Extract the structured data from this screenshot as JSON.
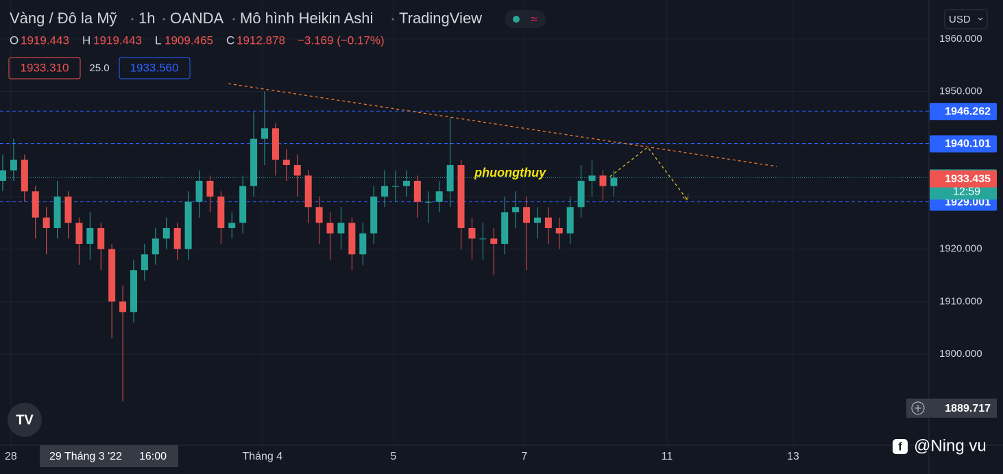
{
  "chart_data": {
    "type": "candlestick",
    "header_parts": [
      "Vàng / Đô la Mỹ",
      "1h",
      "OANDA",
      "Mô hình Heikin Ashi",
      "TradingView"
    ],
    "ohlc_legend": [
      {
        "letter": "O",
        "value": 1919.443
      },
      {
        "letter": "H",
        "value": 1919.443
      },
      {
        "letter": "L",
        "value": 1909.465
      },
      {
        "letter": "C",
        "value": 1912.878
      }
    ],
    "change_label": "−3.169 (−0.17%)",
    "sell_price": "1933.310",
    "spread": "25.0",
    "buy_price": "1933.560",
    "currency": "USD",
    "up_color": "#26a69a",
    "down_color": "#ef5350",
    "x": [
      1,
      5,
      9,
      13,
      17,
      21,
      25,
      29,
      33,
      37,
      41,
      45,
      49,
      53,
      57,
      61,
      65,
      69,
      73,
      77,
      81,
      85,
      89,
      93,
      97,
      101,
      105,
      109,
      113,
      117,
      121,
      125,
      129,
      133,
      137,
      141,
      145,
      149,
      153,
      157,
      161,
      165,
      169,
      173,
      177,
      181,
      185,
      189,
      193,
      197,
      201,
      205,
      209,
      213,
      217,
      221,
      225
    ],
    "open": [
      1933,
      1935,
      1937,
      1931,
      1926,
      1924,
      1930,
      1925,
      1921,
      1924,
      1920,
      1910,
      1908,
      1916,
      1919,
      1922,
      1924,
      1920,
      1929,
      1933,
      1930,
      1924,
      1925,
      1932,
      1941,
      1943,
      1937,
      1936,
      1934,
      1928,
      1925,
      1923,
      1925,
      1919,
      1923,
      1930,
      1932,
      1932,
      1933,
      1929,
      1929,
      1931,
      1936,
      1924,
      1922,
      1922,
      1921,
      1927,
      1928,
      1925,
      1926,
      1924,
      1923,
      1928,
      1933,
      1934,
      1932
    ],
    "high": [
      1938,
      1941,
      1938,
      1932,
      1928,
      1933,
      1931,
      1926,
      1927,
      1925,
      1921,
      1913,
      1918,
      1921,
      1924,
      1926,
      1925,
      1931,
      1935,
      1934,
      1931,
      1927,
      1934,
      1946,
      1950,
      1944,
      1939,
      1938,
      1935,
      1930,
      1927,
      1928,
      1926,
      1925,
      1932,
      1935,
      1935,
      1935,
      1934,
      1931,
      1933,
      1945,
      1937,
      1926,
      1925,
      1924,
      1930,
      1931,
      1930,
      1928,
      1928,
      1926,
      1930,
      1936,
      1937,
      1935,
      1935
    ],
    "low": [
      1931,
      1933,
      1929,
      1922,
      1919,
      1922,
      1922,
      1917,
      1918,
      1916,
      1903,
      1891,
      1906,
      1914,
      1917,
      1920,
      1918,
      1918,
      1926,
      1927,
      1921,
      1922,
      1923,
      1930,
      1936,
      1934,
      1933,
      1930,
      1925,
      1921,
      1918,
      1920,
      1916,
      1917,
      1921,
      1928,
      1929,
      1930,
      1926,
      1925,
      1927,
      1928,
      1920,
      1918,
      1918,
      1915,
      1919,
      1924,
      1916,
      1922,
      1921,
      1920,
      1921,
      1926,
      1930,
      1929,
      1930
    ],
    "close": [
      1935,
      1937,
      1931,
      1926,
      1924,
      1930,
      1925,
      1921,
      1924,
      1920,
      1910,
      1908,
      1916,
      1919,
      1922,
      1924,
      1920,
      1929,
      1933,
      1930,
      1924,
      1925,
      1932,
      1941,
      1943,
      1937,
      1936,
      1934,
      1928,
      1925,
      1923,
      1925,
      1919,
      1923,
      1930,
      1932,
      1932,
      1933,
      1929,
      1929,
      1931,
      1936,
      1924,
      1922,
      1922,
      1921,
      1927,
      1928,
      1925,
      1926,
      1924,
      1923,
      1928,
      1933,
      1934,
      1932,
      1933.606
    ],
    "xlim": [
      0,
      340.5
    ],
    "ylim": [
      1882.65,
      1967.43
    ],
    "xticks": [
      {
        "value": 4,
        "label": "28"
      },
      {
        "value": 96.2,
        "label": "Tháng 4"
      },
      {
        "value": 144.2,
        "label": "5"
      },
      {
        "value": 192.2,
        "label": "7"
      },
      {
        "value": 244.5,
        "label": "11"
      },
      {
        "value": 290.7,
        "label": "13"
      }
    ],
    "yticks": [
      {
        "value": 1900,
        "label": "1900.000"
      },
      {
        "value": 1910,
        "label": "1910.000"
      },
      {
        "value": 1920,
        "label": "1920.000"
      },
      {
        "value": 1930,
        "label": "1930.000"
      },
      {
        "value": 1940,
        "label": "1940.000"
      },
      {
        "value": 1950,
        "label": "1950.000"
      },
      {
        "value": 1960,
        "label": "1960.000"
      }
    ],
    "grid": true,
    "levels": [
      {
        "value": 1946.262,
        "color": "#2962ff",
        "style": "dashed"
      },
      {
        "value": 1940.101,
        "color": "#2962ff",
        "style": "dashed"
      },
      {
        "value": 1929.001,
        "color": "#2962ff",
        "style": "dashed"
      },
      {
        "value": 1933.606,
        "color": "#26a69a",
        "style": "dotted"
      }
    ],
    "last_price_countdown": "12:59",
    "prev_price_tag": {
      "value": 1933.435,
      "color": "#ef5350"
    },
    "crosshair": {
      "value": 1889.717,
      "date": "29 Tháng 3 '22",
      "time": "16:00"
    },
    "trendline": {
      "x": [
        83.7,
        284.7
      ],
      "y": [
        1951.5,
        1935.74
      ],
      "color": "#f57c2a"
    },
    "projection": {
      "x": [
        223.6,
        237.4,
        252
      ],
      "y": [
        1933.8,
        1939.4,
        1929.35
      ],
      "color": "#e6c229"
    },
    "annotation": {
      "text": "phuongthuy",
      "x": 187,
      "y": 1934.4
    },
    "watermark": "@Ning vu"
  }
}
